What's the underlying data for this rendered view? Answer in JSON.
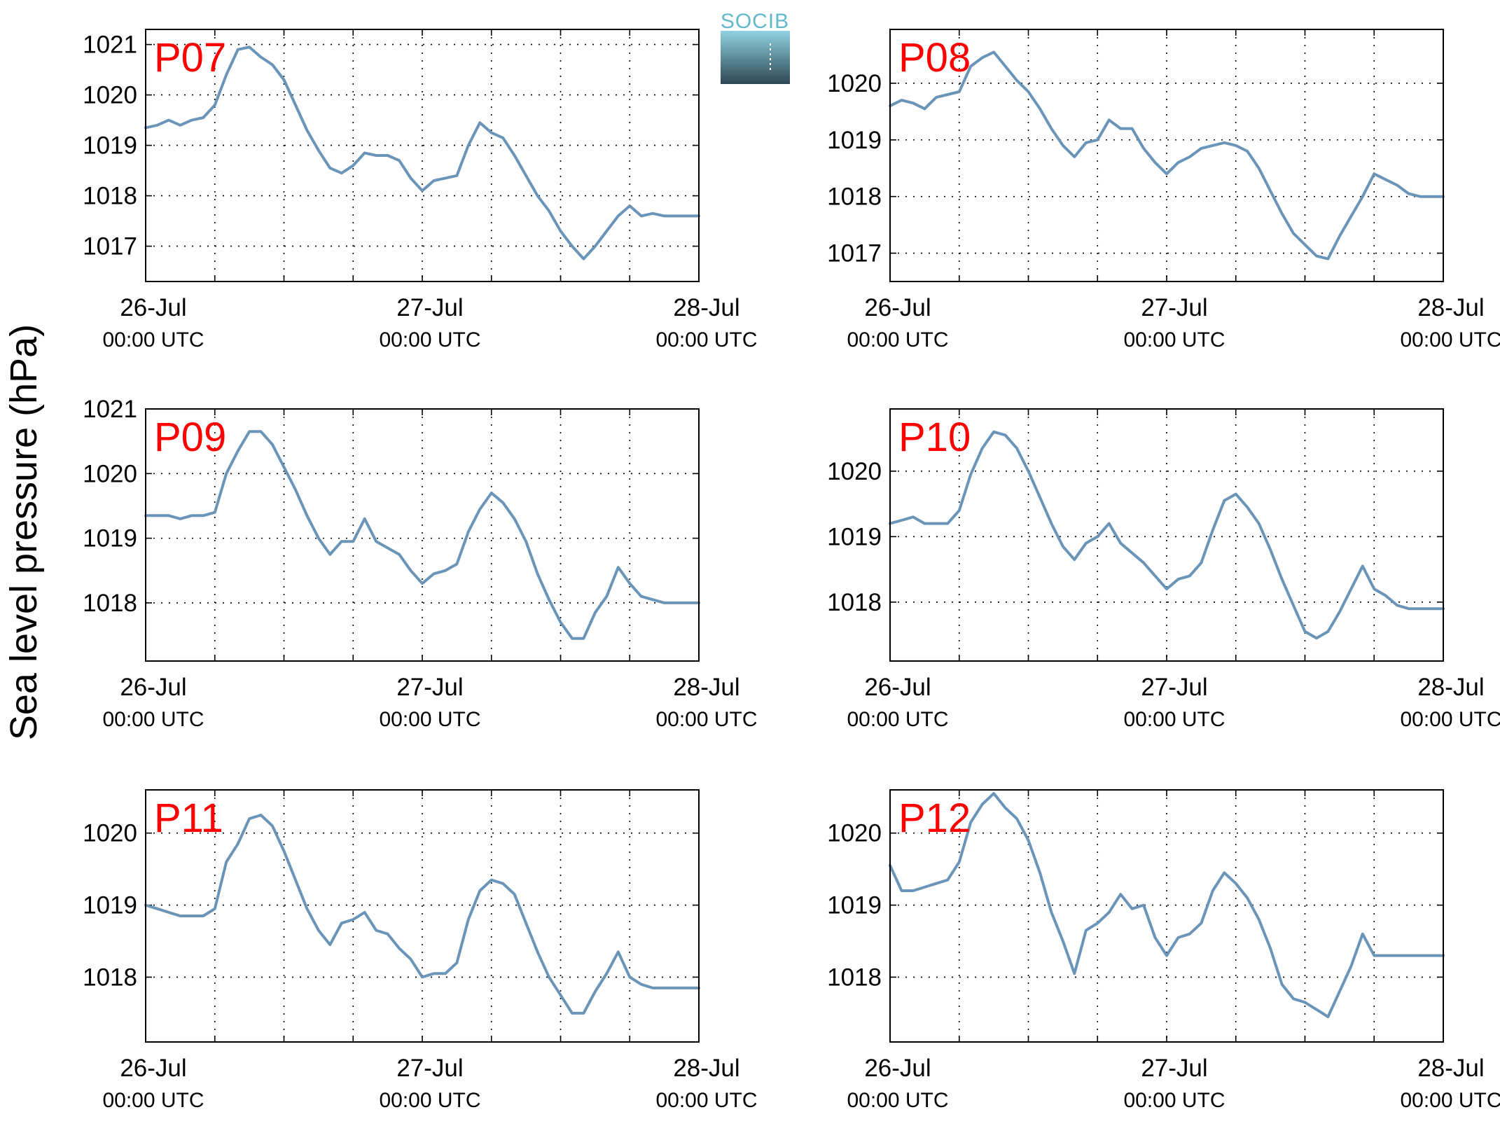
{
  "figure": {
    "ylabel": "Sea level pressure (hPa)",
    "logo": {
      "text": "SOCIB",
      "top_color": "#8fd3e0",
      "bottom_color": "#2f4654"
    },
    "line_color": "#6b95b8",
    "label_color": "#ff0000"
  },
  "chart_data": [
    {
      "type": "line",
      "label": "P07",
      "xlim": [
        0,
        48
      ],
      "ylim": [
        1016.3,
        1021.3
      ],
      "yticks": [
        1017,
        1018,
        1019,
        1020,
        1021
      ],
      "xticks": [
        {
          "x": 0,
          "date": "26-Jul",
          "time": "00:00 UTC"
        },
        {
          "x": 24,
          "date": "27-Jul",
          "time": "00:00 UTC"
        },
        {
          "x": 48,
          "date": "28-Jul",
          "time": "00:00 UTC"
        }
      ],
      "grid": true,
      "series": [
        {
          "x": [
            0,
            1,
            2,
            3,
            4,
            5,
            6,
            7,
            8,
            9,
            10,
            11,
            12,
            13,
            14,
            15,
            16,
            17,
            18,
            19,
            20,
            21,
            22,
            23,
            24,
            25,
            26,
            27,
            28,
            29,
            30,
            31,
            32,
            33,
            34,
            35,
            36,
            37,
            38,
            39,
            40,
            41,
            42,
            43,
            44,
            45,
            46,
            47,
            48
          ],
          "y": [
            1019.35,
            1019.4,
            1019.5,
            1019.4,
            1019.5,
            1019.55,
            1019.8,
            1020.4,
            1020.9,
            1020.95,
            1020.75,
            1020.6,
            1020.3,
            1019.8,
            1019.3,
            1018.9,
            1018.55,
            1018.45,
            1018.6,
            1018.85,
            1018.8,
            1018.8,
            1018.7,
            1018.35,
            1018.1,
            1018.3,
            1018.35,
            1018.4,
            1019.0,
            1019.45,
            1019.25,
            1019.15,
            1018.8,
            1018.4,
            1018.0,
            1017.7,
            1017.3,
            1017.0,
            1016.75,
            1017.0,
            1017.3,
            1017.6,
            1017.8,
            1017.6,
            1017.65,
            1017.6,
            1017.6,
            1017.6,
            1017.6
          ]
        }
      ]
    },
    {
      "type": "line",
      "label": "P08",
      "xlim": [
        0,
        48
      ],
      "ylim": [
        1016.5,
        1020.95
      ],
      "yticks": [
        1017,
        1018,
        1019,
        1020
      ],
      "xticks": [
        {
          "x": 0,
          "date": "26-Jul",
          "time": "00:00 UTC"
        },
        {
          "x": 24,
          "date": "27-Jul",
          "time": "00:00 UTC"
        },
        {
          "x": 48,
          "date": "28-Jul",
          "time": "00:00 UTC"
        }
      ],
      "grid": true,
      "series": [
        {
          "x": [
            0,
            1,
            2,
            3,
            4,
            5,
            6,
            7,
            8,
            9,
            10,
            11,
            12,
            13,
            14,
            15,
            16,
            17,
            18,
            19,
            20,
            21,
            22,
            23,
            24,
            25,
            26,
            27,
            28,
            29,
            30,
            31,
            32,
            33,
            34,
            35,
            36,
            37,
            38,
            39,
            40,
            41,
            42,
            43,
            44,
            45,
            46,
            47,
            48
          ],
          "y": [
            1019.6,
            1019.7,
            1019.65,
            1019.55,
            1019.75,
            1019.8,
            1019.85,
            1020.3,
            1020.45,
            1020.55,
            1020.3,
            1020.05,
            1019.85,
            1019.55,
            1019.2,
            1018.9,
            1018.7,
            1018.95,
            1019.0,
            1019.35,
            1019.2,
            1019.2,
            1018.85,
            1018.6,
            1018.4,
            1018.6,
            1018.7,
            1018.85,
            1018.9,
            1018.95,
            1018.9,
            1018.8,
            1018.5,
            1018.1,
            1017.7,
            1017.35,
            1017.15,
            1016.95,
            1016.9,
            1017.3,
            1017.65,
            1018.0,
            1018.4,
            1018.3,
            1018.2,
            1018.05,
            1018.0,
            1018.0,
            1018.0
          ]
        }
      ]
    },
    {
      "type": "line",
      "label": "P09",
      "xlim": [
        0,
        48
      ],
      "ylim": [
        1017.1,
        1021.0
      ],
      "yticks": [
        1018,
        1019,
        1020,
        1021
      ],
      "xticks": [
        {
          "x": 0,
          "date": "26-Jul",
          "time": "00:00 UTC"
        },
        {
          "x": 24,
          "date": "27-Jul",
          "time": "00:00 UTC"
        },
        {
          "x": 48,
          "date": "28-Jul",
          "time": "00:00 UTC"
        }
      ],
      "grid": true,
      "series": [
        {
          "x": [
            0,
            1,
            2,
            3,
            4,
            5,
            6,
            7,
            8,
            9,
            10,
            11,
            12,
            13,
            14,
            15,
            16,
            17,
            18,
            19,
            20,
            21,
            22,
            23,
            24,
            25,
            26,
            27,
            28,
            29,
            30,
            31,
            32,
            33,
            34,
            35,
            36,
            37,
            38,
            39,
            40,
            41,
            42,
            43,
            44,
            45,
            46,
            47,
            48
          ],
          "y": [
            1019.35,
            1019.35,
            1019.35,
            1019.3,
            1019.35,
            1019.35,
            1019.4,
            1020.0,
            1020.35,
            1020.65,
            1020.65,
            1020.45,
            1020.1,
            1019.75,
            1019.35,
            1019.0,
            1018.75,
            1018.95,
            1018.95,
            1019.3,
            1018.95,
            1018.85,
            1018.75,
            1018.5,
            1018.3,
            1018.45,
            1018.5,
            1018.6,
            1019.1,
            1019.45,
            1019.7,
            1019.55,
            1019.3,
            1018.95,
            1018.45,
            1018.05,
            1017.7,
            1017.45,
            1017.45,
            1017.85,
            1018.1,
            1018.55,
            1018.3,
            1018.1,
            1018.05,
            1018.0,
            1018.0,
            1018.0,
            1018.0
          ]
        }
      ]
    },
    {
      "type": "line",
      "label": "P10",
      "xlim": [
        0,
        48
      ],
      "ylim": [
        1017.1,
        1020.95
      ],
      "yticks": [
        1018,
        1019,
        1020
      ],
      "xticks": [
        {
          "x": 0,
          "date": "26-Jul",
          "time": "00:00 UTC"
        },
        {
          "x": 24,
          "date": "27-Jul",
          "time": "00:00 UTC"
        },
        {
          "x": 48,
          "date": "28-Jul",
          "time": "00:00 UTC"
        }
      ],
      "grid": true,
      "series": [
        {
          "x": [
            0,
            1,
            2,
            3,
            4,
            5,
            6,
            7,
            8,
            9,
            10,
            11,
            12,
            13,
            14,
            15,
            16,
            17,
            18,
            19,
            20,
            21,
            22,
            23,
            24,
            25,
            26,
            27,
            28,
            29,
            30,
            31,
            32,
            33,
            34,
            35,
            36,
            37,
            38,
            39,
            40,
            41,
            42,
            43,
            44,
            45,
            46,
            47,
            48
          ],
          "y": [
            1019.2,
            1019.25,
            1019.3,
            1019.2,
            1019.2,
            1019.2,
            1019.4,
            1019.95,
            1020.35,
            1020.6,
            1020.55,
            1020.35,
            1020.0,
            1019.6,
            1019.2,
            1018.85,
            1018.65,
            1018.9,
            1019.0,
            1019.2,
            1018.9,
            1018.75,
            1018.6,
            1018.4,
            1018.2,
            1018.35,
            1018.4,
            1018.6,
            1019.1,
            1019.55,
            1019.65,
            1019.45,
            1019.2,
            1018.8,
            1018.35,
            1017.95,
            1017.55,
            1017.45,
            1017.55,
            1017.85,
            1018.2,
            1018.55,
            1018.2,
            1018.1,
            1017.95,
            1017.9,
            1017.9,
            1017.9,
            1017.9
          ]
        }
      ]
    },
    {
      "type": "line",
      "label": "P11",
      "xlim": [
        0,
        48
      ],
      "ylim": [
        1017.1,
        1020.6
      ],
      "yticks": [
        1018,
        1019,
        1020
      ],
      "xticks": [
        {
          "x": 0,
          "date": "26-Jul",
          "time": "00:00 UTC"
        },
        {
          "x": 24,
          "date": "27-Jul",
          "time": "00:00 UTC"
        },
        {
          "x": 48,
          "date": "28-Jul",
          "time": "00:00 UTC"
        }
      ],
      "grid": true,
      "series": [
        {
          "x": [
            0,
            1,
            2,
            3,
            4,
            5,
            6,
            7,
            8,
            9,
            10,
            11,
            12,
            13,
            14,
            15,
            16,
            17,
            18,
            19,
            20,
            21,
            22,
            23,
            24,
            25,
            26,
            27,
            28,
            29,
            30,
            31,
            32,
            33,
            34,
            35,
            36,
            37,
            38,
            39,
            40,
            41,
            42,
            43,
            44,
            45,
            46,
            47,
            48
          ],
          "y": [
            1019.0,
            1018.95,
            1018.9,
            1018.85,
            1018.85,
            1018.85,
            1018.95,
            1019.6,
            1019.85,
            1020.2,
            1020.25,
            1020.1,
            1019.75,
            1019.35,
            1018.95,
            1018.65,
            1018.45,
            1018.75,
            1018.8,
            1018.9,
            1018.65,
            1018.6,
            1018.4,
            1018.25,
            1018.0,
            1018.05,
            1018.05,
            1018.2,
            1018.8,
            1019.2,
            1019.35,
            1019.3,
            1019.15,
            1018.75,
            1018.35,
            1018.0,
            1017.75,
            1017.5,
            1017.5,
            1017.8,
            1018.05,
            1018.35,
            1018.0,
            1017.9,
            1017.85,
            1017.85,
            1017.85,
            1017.85,
            1017.85
          ]
        }
      ]
    },
    {
      "type": "line",
      "label": "P12",
      "xlim": [
        0,
        48
      ],
      "ylim": [
        1017.1,
        1020.6
      ],
      "yticks": [
        1018,
        1019,
        1020
      ],
      "xticks": [
        {
          "x": 0,
          "date": "26-Jul",
          "time": "00:00 UTC"
        },
        {
          "x": 24,
          "date": "27-Jul",
          "time": "00:00 UTC"
        },
        {
          "x": 48,
          "date": "28-Jul",
          "time": "00:00 UTC"
        }
      ],
      "grid": true,
      "series": [
        {
          "x": [
            0,
            1,
            2,
            3,
            4,
            5,
            6,
            7,
            8,
            9,
            10,
            11,
            12,
            13,
            14,
            15,
            16,
            17,
            18,
            19,
            20,
            21,
            22,
            23,
            24,
            25,
            26,
            27,
            28,
            29,
            30,
            31,
            32,
            33,
            34,
            35,
            36,
            37,
            38,
            39,
            40,
            41,
            42,
            43,
            44,
            45,
            46,
            47,
            48
          ],
          "y": [
            1019.55,
            1019.2,
            1019.2,
            1019.25,
            1019.3,
            1019.35,
            1019.6,
            1020.15,
            1020.4,
            1020.55,
            1020.35,
            1020.2,
            1019.9,
            1019.45,
            1018.9,
            1018.5,
            1018.05,
            1018.65,
            1018.75,
            1018.9,
            1019.15,
            1018.95,
            1019.0,
            1018.55,
            1018.3,
            1018.55,
            1018.6,
            1018.75,
            1019.2,
            1019.45,
            1019.3,
            1019.1,
            1018.8,
            1018.4,
            1017.9,
            1017.7,
            1017.65,
            1017.55,
            1017.45,
            1017.8,
            1018.15,
            1018.6,
            1018.3,
            1018.3,
            1018.3,
            1018.3,
            1018.3,
            1018.3,
            1018.3
          ]
        }
      ]
    }
  ]
}
